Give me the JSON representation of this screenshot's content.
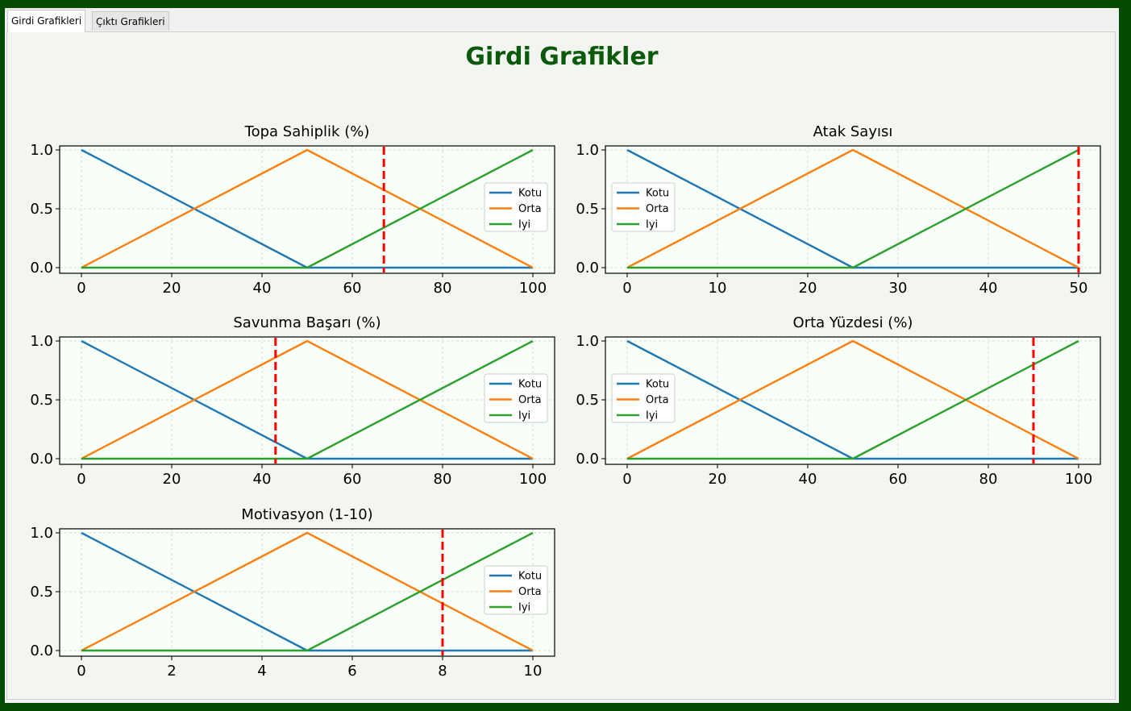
{
  "tabs": [
    {
      "label": "Girdi Grafikleri",
      "active": true
    },
    {
      "label": "Çıktı Grafikleri",
      "active": false
    }
  ],
  "figure": {
    "title": "Girdi Grafikler",
    "title_color": "#0b5a0b",
    "plot_background": "#f8fff8"
  },
  "legend_labels": [
    "Kotu",
    "Orta",
    "Iyi"
  ],
  "series_colors": {
    "Kotu": "#1f77b4",
    "Orta": "#ff7f0e",
    "Iyi": "#2ca02c",
    "marker": "#ff0000"
  },
  "chart_data": [
    {
      "type": "line",
      "title": "Topa Sahiplik (%)",
      "xlim": [
        0,
        100
      ],
      "ylim": [
        0,
        1
      ],
      "xticks": [
        0,
        20,
        40,
        60,
        80,
        100
      ],
      "yticks": [
        "0.0",
        "0.5",
        "1.0"
      ],
      "grid": true,
      "legend": "center-right",
      "series": [
        {
          "name": "Kotu",
          "x": [
            0,
            50,
            100
          ],
          "y": [
            1,
            0,
            0
          ]
        },
        {
          "name": "Orta",
          "x": [
            0,
            50,
            100
          ],
          "y": [
            0,
            1,
            0
          ]
        },
        {
          "name": "Iyi",
          "x": [
            0,
            50,
            100
          ],
          "y": [
            0,
            0,
            1
          ]
        }
      ],
      "marker_x": 67
    },
    {
      "type": "line",
      "title": "Atak Sayısı",
      "xlim": [
        0,
        50
      ],
      "ylim": [
        0,
        1
      ],
      "xticks": [
        0,
        10,
        20,
        30,
        40,
        50
      ],
      "yticks": [
        "0.0",
        "0.5",
        "1.0"
      ],
      "grid": true,
      "legend": "center-left",
      "series": [
        {
          "name": "Kotu",
          "x": [
            0,
            25,
            50
          ],
          "y": [
            1,
            0,
            0
          ]
        },
        {
          "name": "Orta",
          "x": [
            0,
            25,
            50
          ],
          "y": [
            0,
            1,
            0
          ]
        },
        {
          "name": "Iyi",
          "x": [
            0,
            25,
            50
          ],
          "y": [
            0,
            0,
            1
          ]
        }
      ],
      "marker_x": 50
    },
    {
      "type": "line",
      "title": "Savunma Başarı (%)",
      "xlim": [
        0,
        100
      ],
      "ylim": [
        0,
        1
      ],
      "xticks": [
        0,
        20,
        40,
        60,
        80,
        100
      ],
      "yticks": [
        "0.0",
        "0.5",
        "1.0"
      ],
      "grid": true,
      "legend": "center-right",
      "series": [
        {
          "name": "Kotu",
          "x": [
            0,
            50,
            100
          ],
          "y": [
            1,
            0,
            0
          ]
        },
        {
          "name": "Orta",
          "x": [
            0,
            50,
            100
          ],
          "y": [
            0,
            1,
            0
          ]
        },
        {
          "name": "Iyi",
          "x": [
            0,
            50,
            100
          ],
          "y": [
            0,
            0,
            1
          ]
        }
      ],
      "marker_x": 43
    },
    {
      "type": "line",
      "title": "Orta Yüzdesi (%)",
      "xlim": [
        0,
        100
      ],
      "ylim": [
        0,
        1
      ],
      "xticks": [
        0,
        20,
        40,
        60,
        80,
        100
      ],
      "yticks": [
        "0.0",
        "0.5",
        "1.0"
      ],
      "grid": true,
      "legend": "center-left",
      "series": [
        {
          "name": "Kotu",
          "x": [
            0,
            50,
            100
          ],
          "y": [
            1,
            0,
            0
          ]
        },
        {
          "name": "Orta",
          "x": [
            0,
            50,
            100
          ],
          "y": [
            0,
            1,
            0
          ]
        },
        {
          "name": "Iyi",
          "x": [
            0,
            50,
            100
          ],
          "y": [
            0,
            0,
            1
          ]
        }
      ],
      "marker_x": 90
    },
    {
      "type": "line",
      "title": "Motivasyon (1-10)",
      "xlim": [
        0,
        10
      ],
      "ylim": [
        0,
        1
      ],
      "xticks": [
        0,
        2,
        4,
        6,
        8,
        10
      ],
      "yticks": [
        "0.0",
        "0.5",
        "1.0"
      ],
      "grid": true,
      "legend": "center-right",
      "series": [
        {
          "name": "Kotu",
          "x": [
            0,
            5,
            10
          ],
          "y": [
            1,
            0,
            0
          ]
        },
        {
          "name": "Orta",
          "x": [
            0,
            5,
            10
          ],
          "y": [
            0,
            1,
            0
          ]
        },
        {
          "name": "Iyi",
          "x": [
            0,
            5,
            10
          ],
          "y": [
            0,
            0,
            1
          ]
        }
      ],
      "marker_x": 8
    }
  ]
}
